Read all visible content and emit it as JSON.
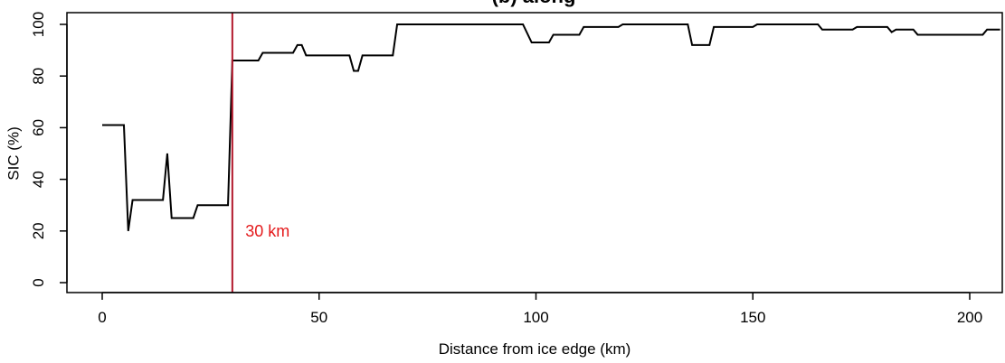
{
  "chart_data": {
    "type": "line",
    "title": "(b) along",
    "xlabel": "Distance from ice edge (km)",
    "ylabel": "SIC (%)",
    "xlim": [
      0,
      207
    ],
    "ylim": [
      0,
      100
    ],
    "x_ticks": [
      0,
      50,
      100,
      150,
      200
    ],
    "y_ticks": [
      0,
      20,
      40,
      60,
      80,
      100
    ],
    "grid": false,
    "legend": "none",
    "series": [
      {
        "color": "#000000",
        "x": [
          0,
          5,
          6,
          7,
          14,
          15,
          16,
          21,
          22,
          29,
          30,
          36,
          37,
          44,
          45,
          46,
          47,
          57,
          58,
          59,
          60,
          67,
          68,
          97,
          99,
          103,
          104,
          107,
          108,
          110,
          111,
          119,
          120,
          135,
          136,
          140,
          141,
          150,
          151,
          165,
          166,
          173,
          174,
          181,
          182,
          183,
          184,
          187,
          188,
          203,
          204,
          207
        ],
        "y": [
          61,
          61,
          20,
          32,
          32,
          50,
          25,
          25,
          30,
          30,
          86,
          86,
          89,
          89,
          92,
          92,
          88,
          88,
          82,
          82,
          88,
          88,
          100,
          100,
          93,
          93,
          96,
          96,
          96,
          96,
          99,
          99,
          100,
          100,
          92,
          92,
          99,
          99,
          100,
          100,
          98,
          98,
          99,
          99,
          97,
          98,
          98,
          98,
          96,
          96,
          98,
          98
        ]
      }
    ],
    "annotations": [
      {
        "type": "vline",
        "x": 30,
        "color": "#b2182b"
      },
      {
        "type": "text",
        "text": "30 km",
        "x": 33,
        "y": 20,
        "color": "#e41a1c"
      }
    ]
  }
}
